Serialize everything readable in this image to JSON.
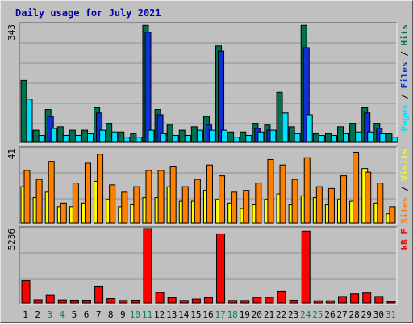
{
  "title": "Daily usage for July 2021",
  "chart_data": [
    {
      "type": "bar",
      "panel": "top",
      "max_label": "343",
      "ymax": 343,
      "x": [
        1,
        2,
        3,
        4,
        5,
        6,
        7,
        8,
        9,
        10,
        11,
        12,
        13,
        14,
        15,
        16,
        17,
        18,
        19,
        20,
        21,
        22,
        23,
        24,
        25,
        26,
        27,
        28,
        29,
        30,
        31
      ],
      "series": [
        {
          "name": "Hits",
          "color": "#007050",
          "values": [
            180,
            35,
            95,
            45,
            35,
            35,
            100,
            55,
            30,
            25,
            340,
            95,
            50,
            35,
            45,
            75,
            280,
            30,
            30,
            55,
            50,
            145,
            45,
            340,
            25,
            25,
            45,
            55,
            100,
            55,
            25
          ]
        },
        {
          "name": "Files",
          "color": "#1030d8",
          "values": [
            0,
            0,
            75,
            0,
            0,
            0,
            85,
            0,
            0,
            0,
            320,
            80,
            0,
            0,
            0,
            50,
            265,
            0,
            0,
            40,
            35,
            0,
            0,
            275,
            0,
            0,
            0,
            0,
            85,
            40,
            0
          ]
        },
        {
          "name": "Pages",
          "color": "#00e0ff",
          "values": [
            125,
            20,
            40,
            20,
            20,
            25,
            35,
            30,
            15,
            15,
            35,
            25,
            20,
            20,
            35,
            35,
            35,
            15,
            20,
            30,
            35,
            85,
            25,
            80,
            20,
            20,
            25,
            30,
            30,
            25,
            15
          ]
        }
      ]
    },
    {
      "type": "bar",
      "panel": "middle",
      "max_label": "41",
      "ymax": 41,
      "x": [
        1,
        2,
        3,
        4,
        5,
        6,
        7,
        8,
        9,
        10,
        11,
        12,
        13,
        14,
        15,
        16,
        17,
        18,
        19,
        20,
        21,
        22,
        23,
        24,
        25,
        26,
        27,
        28,
        29,
        30,
        31
      ],
      "series": [
        {
          "name": "Visits",
          "color": "#ffff00",
          "values": [
            20,
            14,
            17,
            9,
            9,
            11,
            23,
            13,
            9,
            10,
            14,
            14,
            20,
            12,
            12,
            18,
            13,
            11,
            8,
            10,
            13,
            16,
            10,
            15,
            14,
            10,
            13,
            12,
            30,
            11,
            5
          ]
        },
        {
          "name": "Sites",
          "color": "#ff8000",
          "values": [
            29,
            24,
            34,
            11,
            22,
            33,
            38,
            21,
            17,
            20,
            29,
            29,
            31,
            20,
            24,
            32,
            26,
            17,
            18,
            22,
            35,
            32,
            24,
            36,
            20,
            19,
            26,
            39,
            28,
            22,
            9
          ]
        }
      ]
    },
    {
      "type": "bar",
      "panel": "bottom",
      "max_label": "5236",
      "ymax": 5236,
      "x": [
        1,
        2,
        3,
        4,
        5,
        6,
        7,
        8,
        9,
        10,
        11,
        12,
        13,
        14,
        15,
        16,
        17,
        18,
        19,
        20,
        21,
        22,
        23,
        24,
        25,
        26,
        27,
        28,
        29,
        30,
        31
      ],
      "series": [
        {
          "name": "kB F",
          "color": "#ff0000",
          "values": [
            1560,
            230,
            560,
            220,
            200,
            200,
            1170,
            310,
            180,
            200,
            5236,
            730,
            380,
            180,
            280,
            380,
            4870,
            180,
            180,
            400,
            400,
            830,
            200,
            5050,
            160,
            160,
            460,
            640,
            700,
            460,
            100
          ]
        }
      ]
    }
  ],
  "x_labels": [
    "1",
    "2",
    "3",
    "4",
    "5",
    "6",
    "7",
    "8",
    "9",
    "10",
    "11",
    "12",
    "13",
    "14",
    "15",
    "16",
    "17",
    "18",
    "19",
    "20",
    "21",
    "22",
    "23",
    "24",
    "25",
    "26",
    "27",
    "28",
    "29",
    "30",
    "31"
  ],
  "weekend_days": [
    3,
    4,
    10,
    11,
    17,
    18,
    24,
    25,
    31
  ],
  "colors": {
    "weekday_label": "#000000",
    "weekend_label": "#00805a",
    "title": "#0000a8"
  },
  "right_labels": {
    "top": [
      {
        "text": "Pages",
        "color": "#00e0ff"
      },
      {
        "text": " / ",
        "color": "#000000"
      },
      {
        "text": "Files",
        "color": "#1030d8"
      },
      {
        "text": " / ",
        "color": "#000000"
      },
      {
        "text": "Hits",
        "color": "#007050"
      }
    ],
    "middle": [
      {
        "text": "Sites",
        "color": "#ff8000"
      },
      {
        "text": " / ",
        "color": "#000000"
      },
      {
        "text": "Visits",
        "color": "#ffff00"
      }
    ],
    "bottom": [
      {
        "text": "kB F",
        "color": "#ff0000"
      }
    ]
  }
}
